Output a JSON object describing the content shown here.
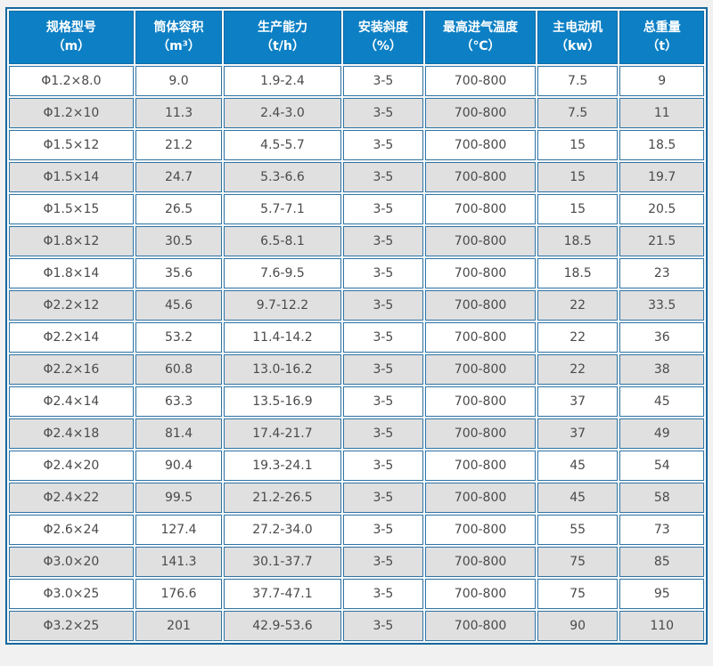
{
  "accent_colors": {
    "header_bg": "#0d80c5",
    "header_text": "#ffffff",
    "cell_border": "#2f74a4",
    "outer_border": "#17689f",
    "row_alt_bg": "#e0e0e0",
    "row_bg": "#ffffff",
    "page_bg": "#f1f1f1",
    "cell_text": "#4a4a4a"
  },
  "chart_data": {
    "type": "table",
    "title": "",
    "columns": [
      {
        "title": "规格型号",
        "unit": "（m）"
      },
      {
        "title": "筒体容积",
        "unit": "（m³）"
      },
      {
        "title": "生产能力",
        "unit": "（t/h）"
      },
      {
        "title": "安装斜度",
        "unit": "（%）"
      },
      {
        "title": "最高进气温度",
        "unit": "（℃）"
      },
      {
        "title": "主电动机",
        "unit": "（kw）"
      },
      {
        "title": "总重量",
        "unit": "（t）"
      }
    ],
    "rows": [
      [
        "Φ1.2×8.0",
        "9.0",
        "1.9-2.4",
        "3-5",
        "700-800",
        "7.5",
        "9"
      ],
      [
        "Φ1.2×10",
        "11.3",
        "2.4-3.0",
        "3-5",
        "700-800",
        "7.5",
        "11"
      ],
      [
        "Φ1.5×12",
        "21.2",
        "4.5-5.7",
        "3-5",
        "700-800",
        "15",
        "18.5"
      ],
      [
        "Φ1.5×14",
        "24.7",
        "5.3-6.6",
        "3-5",
        "700-800",
        "15",
        "19.7"
      ],
      [
        "Φ1.5×15",
        "26.5",
        "5.7-7.1",
        "3-5",
        "700-800",
        "15",
        "20.5"
      ],
      [
        "Φ1.8×12",
        "30.5",
        "6.5-8.1",
        "3-5",
        "700-800",
        "18.5",
        "21.5"
      ],
      [
        "Φ1.8×14",
        "35.6",
        "7.6-9.5",
        "3-5",
        "700-800",
        "18.5",
        "23"
      ],
      [
        "Φ2.2×12",
        "45.6",
        "9.7-12.2",
        "3-5",
        "700-800",
        "22",
        "33.5"
      ],
      [
        "Φ2.2×14",
        "53.2",
        "11.4-14.2",
        "3-5",
        "700-800",
        "22",
        "36"
      ],
      [
        "Φ2.2×16",
        "60.8",
        "13.0-16.2",
        "3-5",
        "700-800",
        "22",
        "38"
      ],
      [
        "Φ2.4×14",
        "63.3",
        "13.5-16.9",
        "3-5",
        "700-800",
        "37",
        "45"
      ],
      [
        "Φ2.4×18",
        "81.4",
        "17.4-21.7",
        "3-5",
        "700-800",
        "37",
        "49"
      ],
      [
        "Φ2.4×20",
        "90.4",
        "19.3-24.1",
        "3-5",
        "700-800",
        "45",
        "54"
      ],
      [
        "Φ2.4×22",
        "99.5",
        "21.2-26.5",
        "3-5",
        "700-800",
        "45",
        "58"
      ],
      [
        "Φ2.6×24",
        "127.4",
        "27.2-34.0",
        "3-5",
        "700-800",
        "55",
        "73"
      ],
      [
        "Φ3.0×20",
        "141.3",
        "30.1-37.7",
        "3-5",
        "700-800",
        "75",
        "85"
      ],
      [
        "Φ3.0×25",
        "176.6",
        "37.7-47.1",
        "3-5",
        "700-800",
        "75",
        "95"
      ],
      [
        "Φ3.2×25",
        "201",
        "42.9-53.6",
        "3-5",
        "700-800",
        "90",
        "110"
      ]
    ]
  }
}
